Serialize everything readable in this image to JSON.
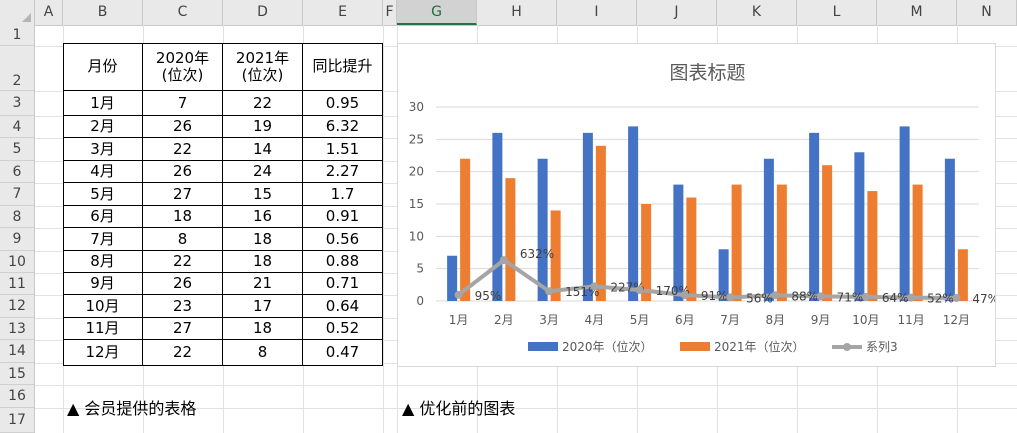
{
  "columns": [
    "A",
    "B",
    "C",
    "D",
    "E",
    "F",
    "G",
    "H",
    "I",
    "J",
    "K",
    "L",
    "M",
    "N"
  ],
  "rows": [
    "1",
    "2",
    "3",
    "4",
    "5",
    "6",
    "7",
    "8",
    "9",
    "10",
    "11",
    "12",
    "13",
    "14",
    "15",
    "16",
    "17"
  ],
  "table": {
    "headers": [
      "月份",
      "2020年\n(位次)",
      "2021年\n(位次)",
      "同比提升"
    ],
    "rows": [
      [
        "1月",
        "7",
        "22",
        "0.95"
      ],
      [
        "2月",
        "26",
        "19",
        "6.32"
      ],
      [
        "3月",
        "22",
        "14",
        "1.51"
      ],
      [
        "4月",
        "26",
        "24",
        "2.27"
      ],
      [
        "5月",
        "27",
        "15",
        "1.7"
      ],
      [
        "6月",
        "18",
        "16",
        "0.91"
      ],
      [
        "7月",
        "8",
        "18",
        "0.56"
      ],
      [
        "8月",
        "22",
        "18",
        "0.88"
      ],
      [
        "9月",
        "26",
        "21",
        "0.71"
      ],
      [
        "10月",
        "23",
        "17",
        "0.64"
      ],
      [
        "11月",
        "27",
        "18",
        "0.52"
      ],
      [
        "12月",
        "22",
        "8",
        "0.47"
      ]
    ]
  },
  "notes": {
    "left": "▲ 会员提供的表格",
    "right": "▲ 优化前的图表"
  },
  "chart_data": {
    "type": "bar",
    "title": "图表标题",
    "categories": [
      "1月",
      "2月",
      "3月",
      "4月",
      "5月",
      "6月",
      "7月",
      "8月",
      "9月",
      "10月",
      "11月",
      "12月"
    ],
    "ylim": [
      0,
      30
    ],
    "yticks": [
      0,
      5,
      10,
      15,
      20,
      25,
      30
    ],
    "grid": true,
    "legend_position": "bottom",
    "series": [
      {
        "name": "2020年（位次）",
        "kind": "bar",
        "color": "#4472C4",
        "values": [
          7,
          26,
          22,
          26,
          27,
          18,
          8,
          22,
          26,
          23,
          27,
          22
        ]
      },
      {
        "name": "2021年（位次）",
        "kind": "bar",
        "color": "#ED7D31",
        "values": [
          22,
          19,
          14,
          24,
          15,
          16,
          18,
          18,
          21,
          17,
          18,
          8
        ]
      },
      {
        "name": "系列3",
        "kind": "line",
        "color": "#A5A5A5",
        "values": [
          0.95,
          6.32,
          1.51,
          2.27,
          1.7,
          0.91,
          0.56,
          0.88,
          0.71,
          0.64,
          0.52,
          0.47
        ],
        "labels": [
          "95%",
          "632%",
          "151%",
          "227%",
          "170%",
          "91%",
          "56%",
          "88%",
          "71%",
          "64%",
          "52%",
          "47%"
        ]
      }
    ]
  }
}
